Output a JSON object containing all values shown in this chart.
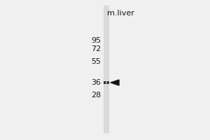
{
  "background_color": "#f0f0f0",
  "lane_label": "m.liver",
  "lane_label_fontsize": 8,
  "mw_markers": [
    "95",
    "72",
    "55",
    "36",
    "28"
  ],
  "mw_fontsize": 8,
  "fig_width": 3.0,
  "fig_height": 2.0,
  "lane_color": "#c0c0c0",
  "band_color": "#222222",
  "arrow_color": "#111111"
}
